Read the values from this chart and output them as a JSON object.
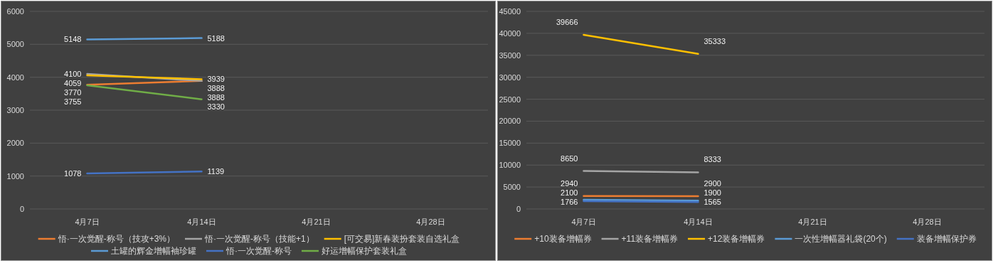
{
  "chart_data": [
    {
      "type": "line",
      "categories": [
        "4月7日",
        "4月14日",
        "4月21日",
        "4月28日"
      ],
      "ylim": [
        0,
        6000
      ],
      "yticks": [
        0,
        1000,
        2000,
        3000,
        4000,
        5000,
        6000
      ],
      "grid": "y",
      "legend": "bottom",
      "data_labels": true,
      "marker": "none",
      "series": [
        {
          "name": "悟·一次觉醒-称号（技攻+3%）",
          "color": "#ed7d31",
          "values": [
            3770,
            3888,
            null,
            null
          ]
        },
        {
          "name": "悟·一次觉醒-称号（技能+1）",
          "color": "#a5a5a5",
          "values": [
            4100,
            3888,
            null,
            null
          ]
        },
        {
          "name": "[可交易]新春装扮套装自选礼盒",
          "color": "#ffc000",
          "values": [
            4059,
            3939,
            null,
            null
          ]
        },
        {
          "name": "土罐的辉金增幅袖珍罐",
          "color": "#5b9bd5",
          "values": [
            5148,
            5188,
            null,
            null
          ]
        },
        {
          "name": "悟·一次觉醒-称号",
          "color": "#4472c4",
          "values": [
            1078,
            1139,
            null,
            null
          ]
        },
        {
          "name": "好运增幅保护套装礼盒",
          "color": "#70ad47",
          "values": [
            3755,
            3330,
            null,
            null
          ]
        }
      ]
    },
    {
      "type": "line",
      "categories": [
        "4月7日",
        "4月14日",
        "4月21日",
        "4月28日"
      ],
      "ylim": [
        0,
        45000
      ],
      "yticks": [
        0,
        5000,
        10000,
        15000,
        20000,
        25000,
        30000,
        35000,
        40000,
        45000
      ],
      "grid": "y",
      "legend": "bottom",
      "data_labels": true,
      "marker": "none",
      "series": [
        {
          "name": "+10装备增幅券",
          "color": "#ed7d31",
          "values": [
            2940,
            2900,
            null,
            null
          ]
        },
        {
          "name": "+11装备增幅券",
          "color": "#a5a5a5",
          "values": [
            8650,
            8333,
            null,
            null
          ]
        },
        {
          "name": "+12装备增幅券",
          "color": "#ffc000",
          "values": [
            39666,
            35333,
            null,
            null
          ]
        },
        {
          "name": "一次性增幅器礼袋(20个)",
          "color": "#5b9bd5",
          "values": [
            2100,
            1900,
            null,
            null
          ]
        },
        {
          "name": "装备增幅保护券",
          "color": "#4472c4",
          "values": [
            1766,
            1565,
            null,
            null
          ]
        }
      ]
    }
  ]
}
